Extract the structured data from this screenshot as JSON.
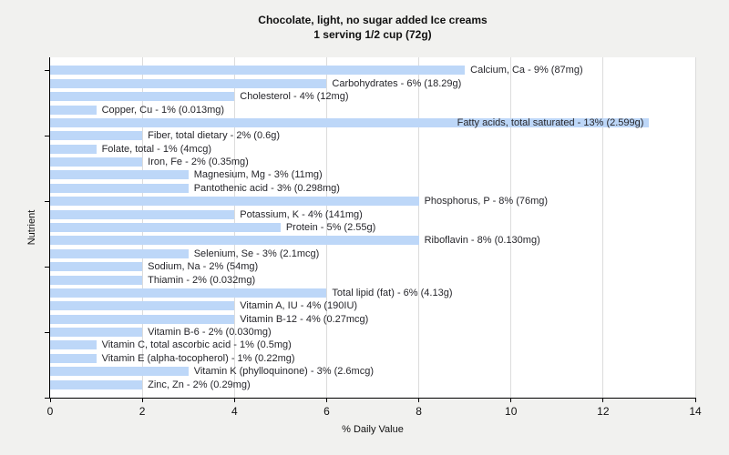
{
  "page": {
    "background": "#f1f1ef"
  },
  "chart_data": {
    "type": "bar",
    "orientation": "horizontal",
    "title": "Chocolate, light, no sugar added Ice creams",
    "subtitle": "1 serving 1/2 cup (72g)",
    "xlabel": "% Daily Value",
    "ylabel": "Nutrient",
    "xlim": [
      0,
      14
    ],
    "xticks": [
      0,
      2,
      4,
      6,
      8,
      10,
      12,
      14
    ],
    "grid": true,
    "legend": "none",
    "plot_background": "#ffffff",
    "bar_color": "#bdd7f8",
    "gridline_color": "#dcdcdc",
    "bars": [
      {
        "nutrient": "Calcium, Ca",
        "percent": 9,
        "amount": "87mg",
        "label": "Calcium, Ca - 9% (87mg)",
        "label_inside": false
      },
      {
        "nutrient": "Carbohydrates",
        "percent": 6,
        "amount": "18.29g",
        "label": "Carbohydrates - 6% (18.29g)",
        "label_inside": false
      },
      {
        "nutrient": "Cholesterol",
        "percent": 4,
        "amount": "12mg",
        "label": "Cholesterol - 4% (12mg)",
        "label_inside": false
      },
      {
        "nutrient": "Copper, Cu",
        "percent": 1,
        "amount": "0.013mg",
        "label": "Copper, Cu - 1% (0.013mg)",
        "label_inside": false
      },
      {
        "nutrient": "Fatty acids, total saturated",
        "percent": 13,
        "amount": "2.599g",
        "label": "Fatty acids, total saturated - 13% (2.599g)",
        "label_inside": true
      },
      {
        "nutrient": "Fiber, total dietary",
        "percent": 2,
        "amount": "0.6g",
        "label": "Fiber, total dietary - 2% (0.6g)",
        "label_inside": false
      },
      {
        "nutrient": "Folate, total",
        "percent": 1,
        "amount": "4mcg",
        "label": "Folate, total - 1% (4mcg)",
        "label_inside": false
      },
      {
        "nutrient": "Iron, Fe",
        "percent": 2,
        "amount": "0.35mg",
        "label": "Iron, Fe - 2% (0.35mg)",
        "label_inside": false
      },
      {
        "nutrient": "Magnesium, Mg",
        "percent": 3,
        "amount": "11mg",
        "label": "Magnesium, Mg - 3% (11mg)",
        "label_inside": false
      },
      {
        "nutrient": "Pantothenic acid",
        "percent": 3,
        "amount": "0.298mg",
        "label": "Pantothenic acid - 3% (0.298mg)",
        "label_inside": false
      },
      {
        "nutrient": "Phosphorus, P",
        "percent": 8,
        "amount": "76mg",
        "label": "Phosphorus, P - 8% (76mg)",
        "label_inside": false
      },
      {
        "nutrient": "Potassium, K",
        "percent": 4,
        "amount": "141mg",
        "label": "Potassium, K - 4% (141mg)",
        "label_inside": false
      },
      {
        "nutrient": "Protein",
        "percent": 5,
        "amount": "2.55g",
        "label": "Protein - 5% (2.55g)",
        "label_inside": false
      },
      {
        "nutrient": "Riboflavin",
        "percent": 8,
        "amount": "0.130mg",
        "label": "Riboflavin - 8% (0.130mg)",
        "label_inside": false
      },
      {
        "nutrient": "Selenium, Se",
        "percent": 3,
        "amount": "2.1mcg",
        "label": "Selenium, Se - 3% (2.1mcg)",
        "label_inside": false
      },
      {
        "nutrient": "Sodium, Na",
        "percent": 2,
        "amount": "54mg",
        "label": "Sodium, Na - 2% (54mg)",
        "label_inside": false
      },
      {
        "nutrient": "Thiamin",
        "percent": 2,
        "amount": "0.032mg",
        "label": "Thiamin - 2% (0.032mg)",
        "label_inside": false
      },
      {
        "nutrient": "Total lipid (fat)",
        "percent": 6,
        "amount": "4.13g",
        "label": "Total lipid (fat) - 6% (4.13g)",
        "label_inside": false
      },
      {
        "nutrient": "Vitamin A, IU",
        "percent": 4,
        "amount": "190IU",
        "label": "Vitamin A, IU - 4% (190IU)",
        "label_inside": false
      },
      {
        "nutrient": "Vitamin B-12",
        "percent": 4,
        "amount": "0.27mcg",
        "label": "Vitamin B-12 - 4% (0.27mcg)",
        "label_inside": false
      },
      {
        "nutrient": "Vitamin B-6",
        "percent": 2,
        "amount": "0.030mg",
        "label": "Vitamin B-6 - 2% (0.030mg)",
        "label_inside": false
      },
      {
        "nutrient": "Vitamin C, total ascorbic acid",
        "percent": 1,
        "amount": "0.5mg",
        "label": "Vitamin C, total ascorbic acid - 1% (0.5mg)",
        "label_inside": false
      },
      {
        "nutrient": "Vitamin E (alpha-tocopherol)",
        "percent": 1,
        "amount": "0.22mg",
        "label": "Vitamin E (alpha-tocopherol) - 1% (0.22mg)",
        "label_inside": false
      },
      {
        "nutrient": "Vitamin K (phylloquinone)",
        "percent": 3,
        "amount": "2.6mcg",
        "label": "Vitamin K (phylloquinone) - 3% (2.6mcg)",
        "label_inside": false
      },
      {
        "nutrient": "Zinc, Zn",
        "percent": 2,
        "amount": "0.29mg",
        "label": "Zinc, Zn - 2% (0.29mg)",
        "label_inside": false
      }
    ]
  }
}
